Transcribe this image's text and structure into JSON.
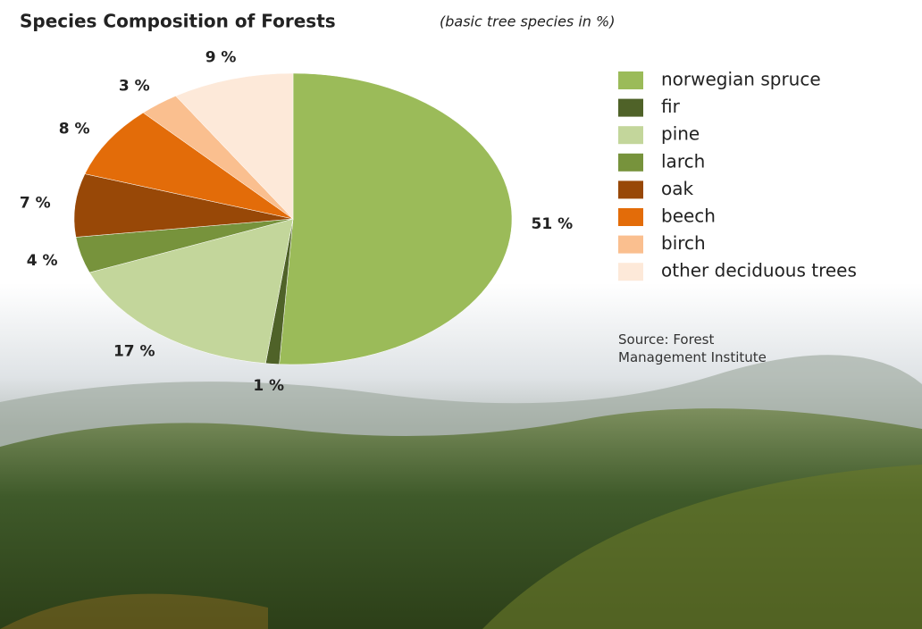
{
  "chart_data": {
    "type": "pie",
    "title": "Species Composition of Forests",
    "subtitle": "(basic tree species in %)",
    "categories": [
      "norwegian spruce",
      "fir",
      "pine",
      "larch",
      "oak",
      "beech",
      "birch",
      "other deciduous trees"
    ],
    "values": [
      51,
      1,
      17,
      4,
      7,
      8,
      3,
      9
    ],
    "value_labels": [
      "51 %",
      "1 %",
      "17 %",
      "4 %",
      "7 %",
      "8 %",
      "3 %",
      "9 %"
    ],
    "colors": [
      "#9bbb59",
      "#4f6228",
      "#c3d69b",
      "#77933c",
      "#984807",
      "#e36c09",
      "#fabf8f",
      "#fde9d9"
    ],
    "legend": "right",
    "source": "Source: Forest Management Institute"
  }
}
